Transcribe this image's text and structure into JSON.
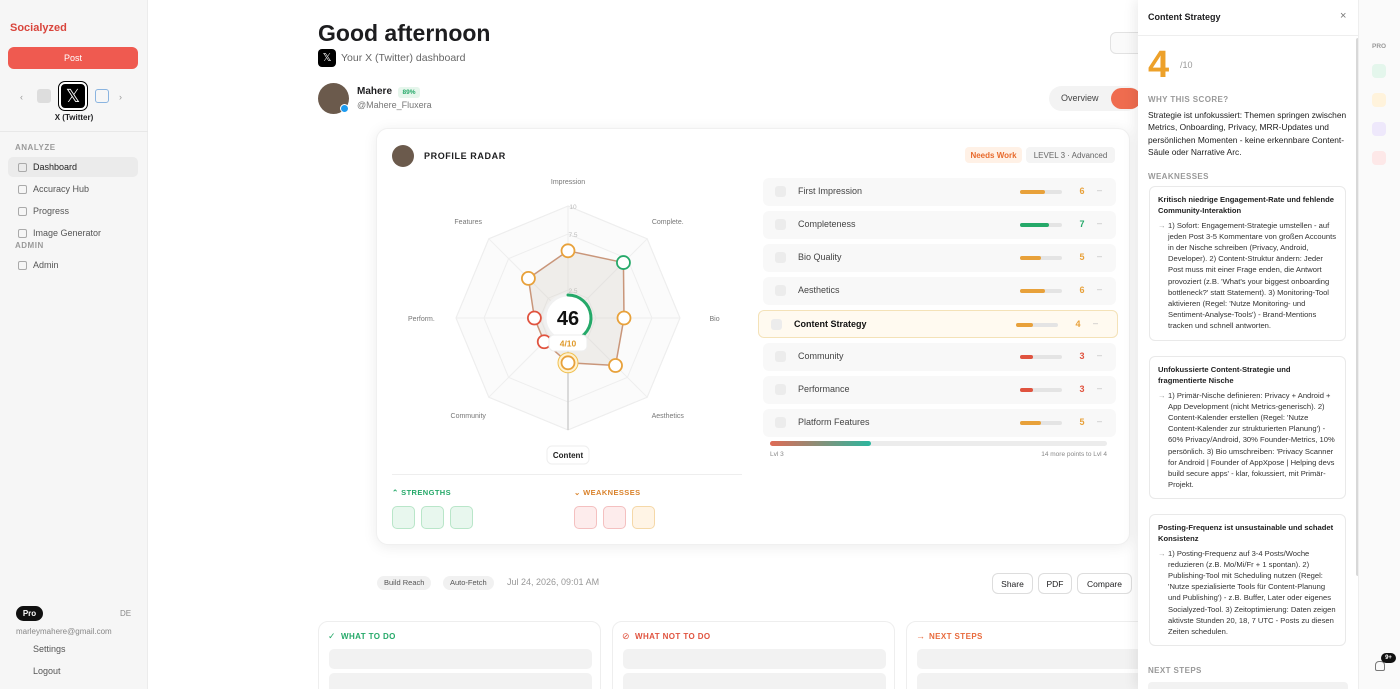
{
  "sidebar": {
    "logo": "Socialyzed",
    "post_button": "Post",
    "platform": "X (Twitter)",
    "nav": [
      {
        "section": "ANALYZE",
        "items": [
          "Dashboard",
          "Accuracy Hub",
          "Progress",
          "Image Generator"
        ]
      },
      {
        "section": "ADMIN",
        "items": [
          "Admin"
        ]
      }
    ],
    "plan": "Pro",
    "language": "DE",
    "email": "marleymahere@gmail.com",
    "settings": "Settings",
    "logout": "Logout"
  },
  "header": {
    "greeting": "Good afternoon",
    "subtitle": "Your X (Twitter) dashboard",
    "name": "Mahere",
    "name_badge": "89%",
    "handle": "@Mahere_Fluxera",
    "tab": "Overview"
  },
  "radar_card": {
    "title": "PROFILE RADAR",
    "status": "Needs Work",
    "level": "LEVEL 3 · Advanced",
    "metrics": [
      "First Impression",
      "Completeness",
      "Bio Quality",
      "Aesthetics",
      "Content Strategy",
      "Community",
      "Performance",
      "Platform Features"
    ],
    "level_start": "Lvl 3",
    "level_remaining": "14 more points to Lvl 4",
    "strengths": "STRENGTHS",
    "weaknesses": "WEAKNESSES"
  },
  "chart_data": {
    "type": "radar",
    "axes": [
      "Impression",
      "Complete.",
      "Bio",
      "Aesthetics",
      "Content",
      "Community",
      "Perform.",
      "Features"
    ],
    "values": [
      6,
      7,
      5,
      6,
      4,
      3,
      3,
      5
    ],
    "rlim": [
      0,
      10
    ],
    "rticks": [
      2.5,
      7.5,
      10
    ],
    "score": 46,
    "score_label": "4/10",
    "colors": {
      "good": "#25a969",
      "mid": "#e8a13a",
      "low": "#e0533f"
    }
  },
  "toolbar": {
    "tags": [
      "Build Reach",
      "Auto-Fetch"
    ],
    "date": "Jul 24, 2026, 09:01 AM",
    "buttons": [
      "Share",
      "PDF",
      "Compare"
    ]
  },
  "cards": [
    "WHAT TO DO",
    "WHAT NOT TO DO",
    "NEXT STEPS"
  ],
  "panel": {
    "title": "Content Strategy",
    "score_suffix": "/10",
    "why_heading": "WHY THIS SCORE?",
    "why_text": "Strategie ist unfokussiert: Themen springen zwischen Metrics, Onboarding, Privacy, MRR-Updates und persönlichen Momenten - keine erkennbare Content-Säule oder Narrative Arc.",
    "weaknesses_heading": "WEAKNESSES",
    "weaknesses": [
      {
        "title": "Kritisch niedrige Engagement-Rate und fehlende Community-Interaktion",
        "text": "1) Sofort: Engagement-Strategie umstellen - auf jeden Post 3-5 Kommentare von großen Accounts in der Nische schreiben (Privacy, Android, Developer). 2) Content-Struktur ändern: Jeder Post muss mit einer Frage enden, die Antwort provoziert (z.B. 'What's your biggest onboarding bottleneck?' statt Statement). 3) Monitoring-Tool aktivieren (Regel: 'Nutze Monitoring- und Sentiment-Analyse-Tools') - Brand-Mentions tracken und schnell antworten."
      },
      {
        "title": "Unfokussierte Content-Strategie und fragmentierte Nische",
        "text": "1) Primär-Nische definieren: Privacy + Android + App Development (nicht Metrics-generisch). 2) Content-Kalender erstellen (Regel: 'Nutze Content-Kalender zur strukturierten Planung') - 60% Privacy/Android, 30% Founder-Metrics, 10% persönlich. 3) Bio umschreiben: 'Privacy Scanner for Android | Founder of AppXpose | Helping devs build secure apps' - klar, fokussiert, mit Primär-Projekt."
      },
      {
        "title": "Posting-Frequenz ist unsustainable und schadet Konsistenz",
        "text": "1) Posting-Frequenz auf 3-4 Posts/Woche reduzieren (z.B. Mo/Mi/Fr + 1 spontan). 2) Publishing-Tool mit Scheduling nutzen (Regel: 'Nutze spezialisierte Tools für Content-Planung und Publishing') - z.B. Buffer, Later oder eigenes Socialyzed-Tool. 3) Zeitoptimierung: Daten zeigen aktivste Stunden 20, 18, 7 UTC - Posts zu diesen Zeiten schedulen."
      }
    ],
    "next_heading": "NEXT STEPS"
  },
  "rail": {
    "label": "PRO",
    "badge": "9+"
  }
}
